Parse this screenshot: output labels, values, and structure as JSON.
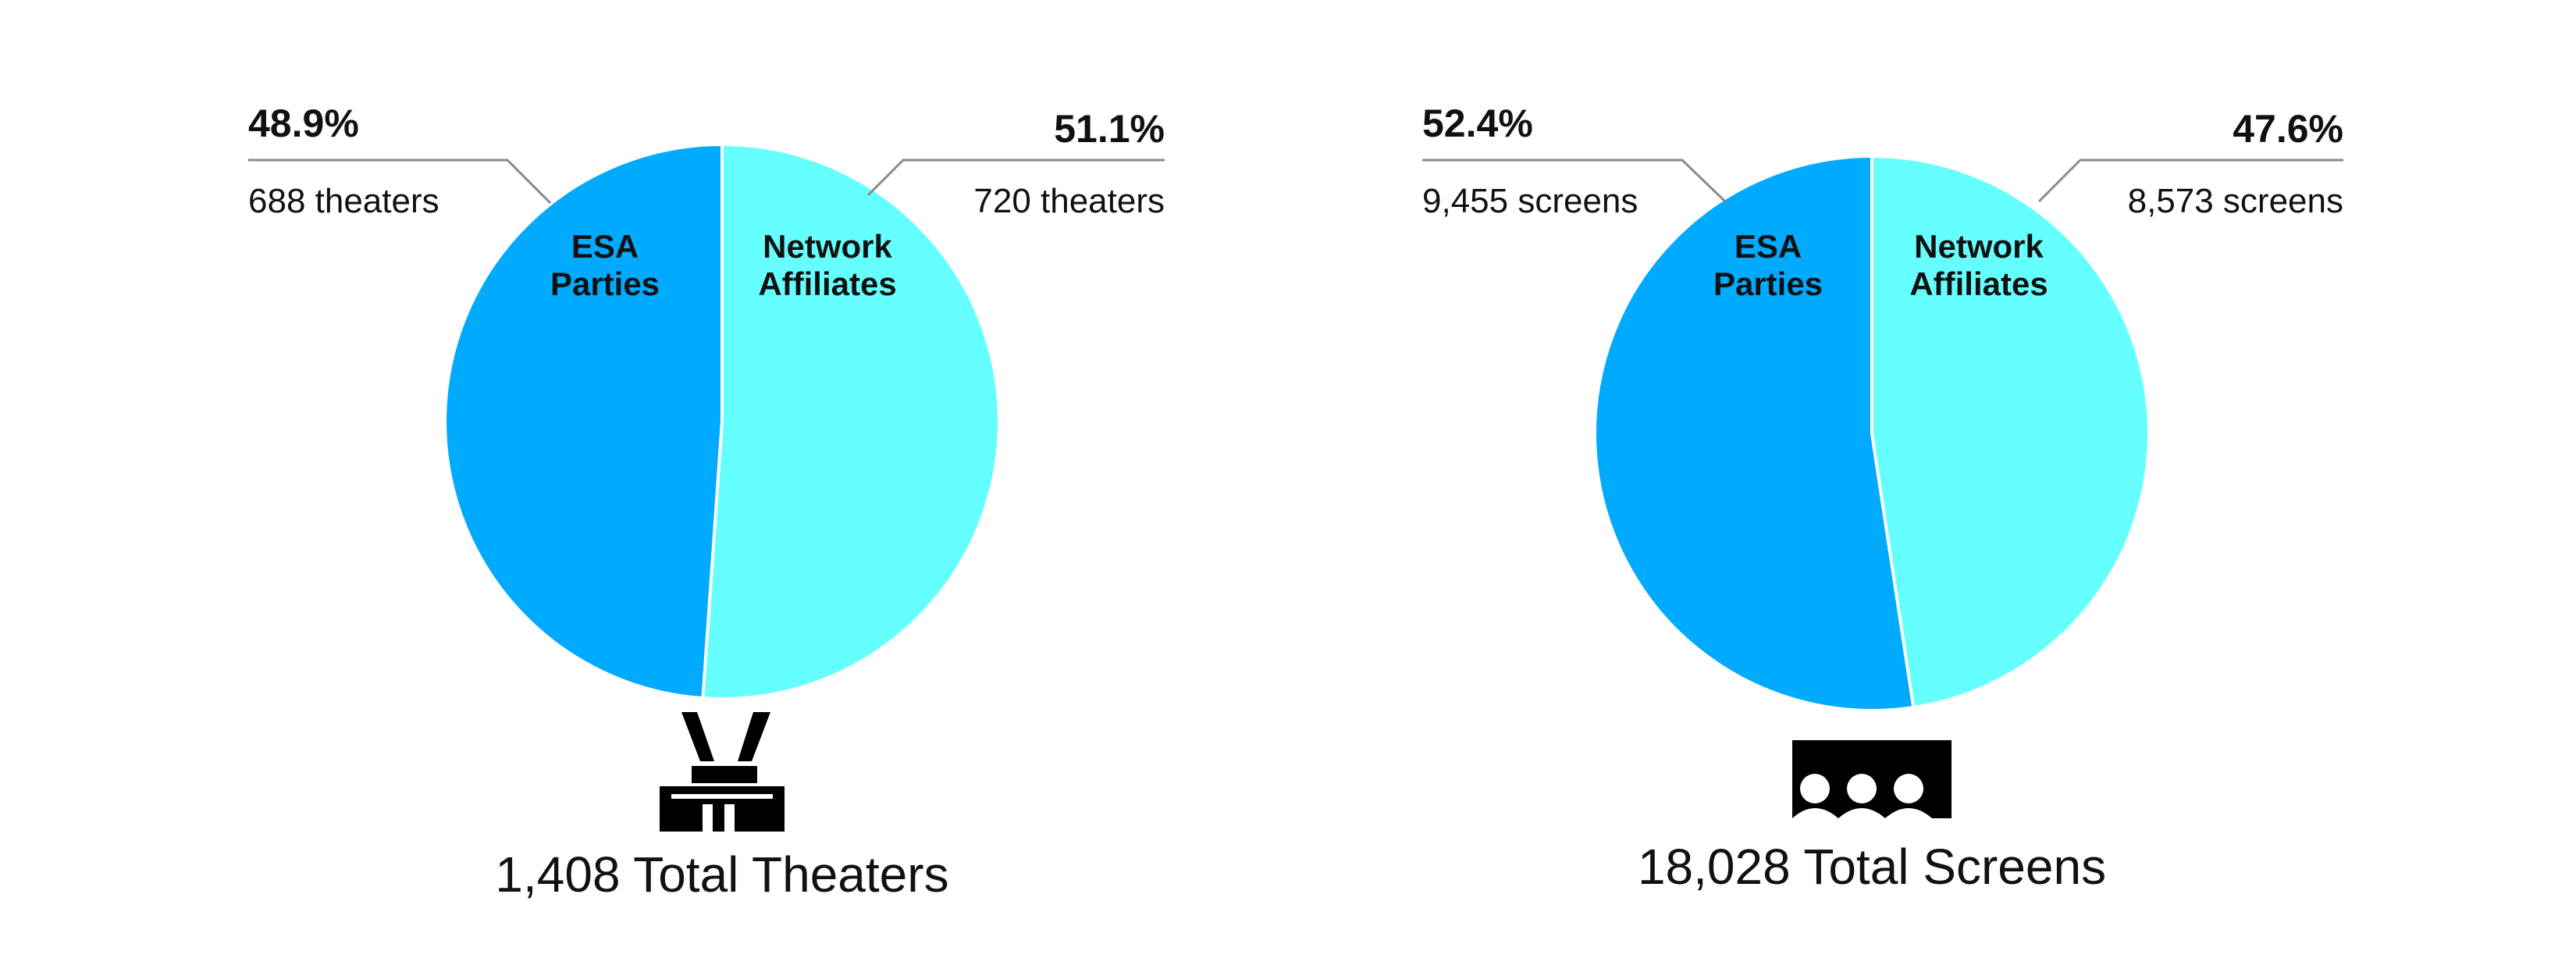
{
  "colors": {
    "esa": "#00abff",
    "affiliates": "#66ffff",
    "icon": "#000000",
    "leader": "#8a8a8a"
  },
  "icons": {
    "theaters": "theater-building-icon",
    "screens": "cinema-audience-icon"
  },
  "chart_data": [
    {
      "type": "pie",
      "title": "",
      "total_label": "1,408 Total Theaters",
      "slices": [
        {
          "label_line1": "ESA",
          "label_line2": "Parties",
          "value": 48.9,
          "percent_label": "48.9%",
          "count_label": "688 theaters",
          "color": "#00abff"
        },
        {
          "label_line1": "Network",
          "label_line2": "Affiliates",
          "value": 51.1,
          "percent_label": "51.1%",
          "count_label": "720 theaters",
          "color": "#66ffff"
        }
      ]
    },
    {
      "type": "pie",
      "title": "",
      "total_label": "18,028 Total Screens",
      "slices": [
        {
          "label_line1": "ESA",
          "label_line2": "Parties",
          "value": 52.4,
          "percent_label": "52.4%",
          "count_label": "9,455 screens",
          "color": "#00abff"
        },
        {
          "label_line1": "Network",
          "label_line2": "Affiliates",
          "value": 47.6,
          "percent_label": "47.6%",
          "count_label": "8,573 screens",
          "color": "#66ffff"
        }
      ]
    }
  ]
}
